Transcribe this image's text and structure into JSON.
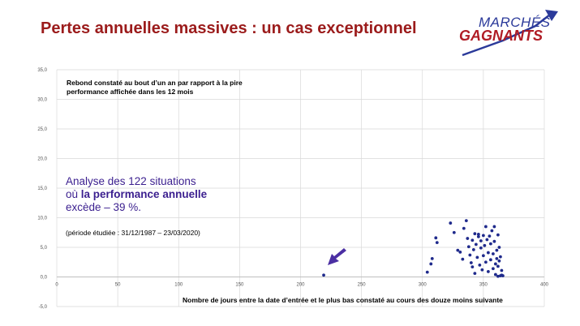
{
  "header": {
    "title": "Pertes annuelles massives : un cas exceptionnel"
  },
  "logo": {
    "line1": "MARCHÉS",
    "line2": "GAGNANTS"
  },
  "annotations": {
    "note": "Rebond constaté au bout d’un an par rapport à la pire performance affichée dans les 12 mois",
    "analysis_prefix": "Analyse des 122 situations",
    "analysis_mid_before": "où ",
    "analysis_bold": "la performance annuelle",
    "analysis_suffix": "excède – 39 %.",
    "period": "(période étudiée : 31/12/1987 – 23/03/2020)"
  },
  "colors": {
    "title": "#9b1b1b",
    "points": "#1f2a8c",
    "arrow": "#4b2fa3",
    "grid": "#d9d9d9"
  },
  "chart_data": {
    "type": "scatter",
    "xlabel": "Nombre de jours entre la date d’entrée et le plus bas constaté au cours des douze moins suivante",
    "ylabel": "",
    "xlim": [
      0,
      400
    ],
    "ylim": [
      -5,
      35
    ],
    "x_ticks": [
      "0",
      "50",
      "100",
      "150",
      "200",
      "250",
      "300",
      "350",
      "400"
    ],
    "y_ticks": [
      "-5,0",
      "0,0",
      "5,0",
      "10,0",
      "15,0",
      "20,0",
      "25,0",
      "30,0",
      "35,0"
    ],
    "grid": true,
    "series": [
      {
        "points": [
          [
            219,
            0.3
          ],
          [
            304,
            0.8
          ],
          [
            307,
            2.2
          ],
          [
            308,
            3.1
          ],
          [
            311,
            6.6
          ],
          [
            312,
            5.8
          ],
          [
            323,
            9.1
          ],
          [
            326,
            7.5
          ],
          [
            329,
            4.5
          ],
          [
            331,
            4.2
          ],
          [
            333,
            3.0
          ],
          [
            334,
            8.2
          ],
          [
            336,
            9.5
          ],
          [
            337,
            6.5
          ],
          [
            338,
            5.1
          ],
          [
            339,
            3.7
          ],
          [
            340,
            2.4
          ],
          [
            341,
            1.7
          ],
          [
            341,
            6.2
          ],
          [
            342,
            4.6
          ],
          [
            343,
            7.3
          ],
          [
            343,
            0.6
          ],
          [
            344,
            5.5
          ],
          [
            345,
            3.3
          ],
          [
            346,
            7.2
          ],
          [
            346,
            6.8
          ],
          [
            347,
            2.0
          ],
          [
            348,
            4.9
          ],
          [
            348,
            6.1
          ],
          [
            349,
            1.2
          ],
          [
            350,
            7.0
          ],
          [
            350,
            3.6
          ],
          [
            351,
            5.3
          ],
          [
            352,
            2.5
          ],
          [
            352,
            8.5
          ],
          [
            353,
            6.3
          ],
          [
            354,
            0.9
          ],
          [
            354,
            4.1
          ],
          [
            355,
            6.9
          ],
          [
            356,
            2.9
          ],
          [
            356,
            5.6
          ],
          [
            357,
            7.8
          ],
          [
            358,
            1.4
          ],
          [
            358,
            3.9
          ],
          [
            359,
            8.5
          ],
          [
            359,
            6.0
          ],
          [
            360,
            0.4
          ],
          [
            360,
            2.2
          ],
          [
            361,
            4.5
          ],
          [
            361,
            3.1
          ],
          [
            362,
            7.1
          ],
          [
            362,
            1.8
          ],
          [
            362,
            0.1
          ],
          [
            363,
            2.7
          ],
          [
            363,
            5.0
          ],
          [
            364,
            0.2
          ],
          [
            364,
            3.4
          ],
          [
            365,
            0.3
          ],
          [
            365,
            1.1
          ],
          [
            366,
            0.2
          ]
        ]
      }
    ]
  }
}
